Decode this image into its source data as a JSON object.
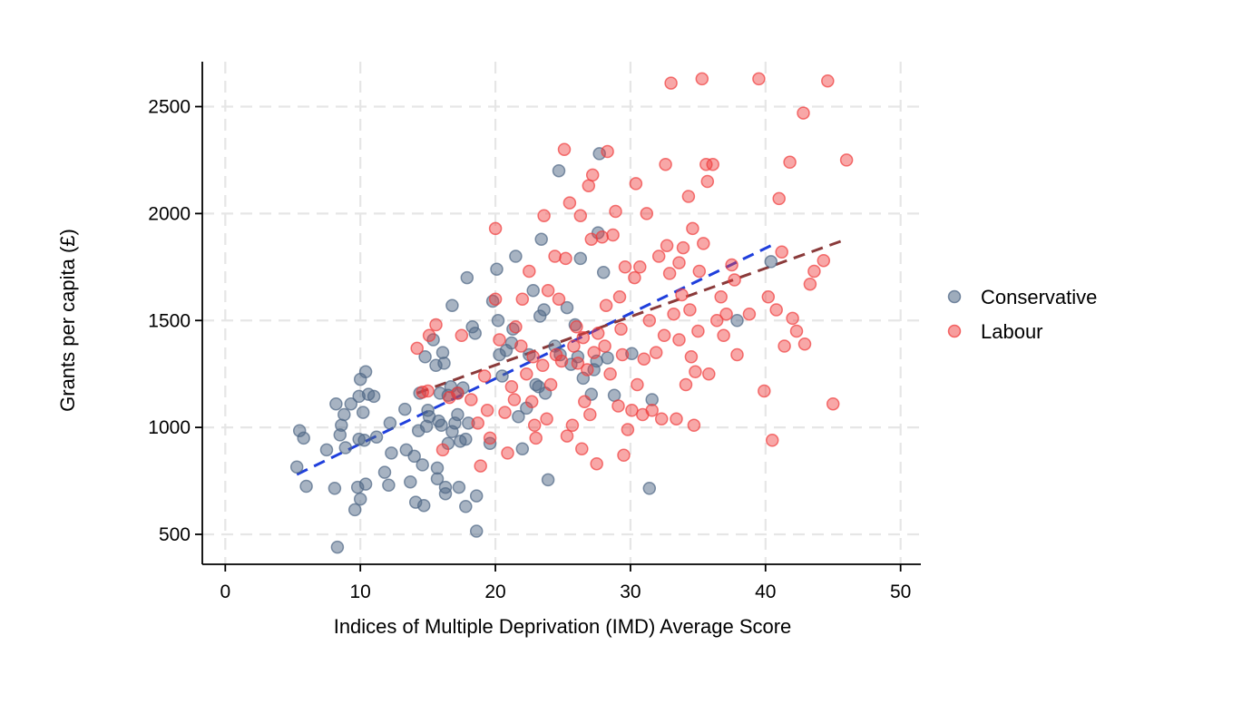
{
  "chart_data": {
    "type": "scatter",
    "title": "",
    "xlabel": "Indices of Multiple Deprivation (IMD) Average Score",
    "ylabel": "Grants per capita (£)",
    "xlim": [
      -1.7,
      51.5
    ],
    "ylim": [
      360,
      2710
    ],
    "x_ticks": [
      0,
      10,
      20,
      30,
      40,
      50
    ],
    "y_ticks": [
      500,
      1000,
      1500,
      2000,
      2500
    ],
    "grid": true,
    "legend_position": "right",
    "series": [
      {
        "name": "Conservative",
        "color": "#4f6785",
        "points": [
          [
            5.5,
            985
          ],
          [
            5.3,
            815
          ],
          [
            5.8,
            950
          ],
          [
            6.0,
            725
          ],
          [
            7.5,
            895
          ],
          [
            8.3,
            440
          ],
          [
            8.1,
            715
          ],
          [
            8.2,
            1110
          ],
          [
            8.6,
            1010
          ],
          [
            8.8,
            1060
          ],
          [
            8.5,
            965
          ],
          [
            8.9,
            905
          ],
          [
            9.3,
            1110
          ],
          [
            9.6,
            615
          ],
          [
            9.8,
            720
          ],
          [
            9.9,
            1145
          ],
          [
            10.0,
            1225
          ],
          [
            9.9,
            945
          ],
          [
            10.0,
            665
          ],
          [
            10.2,
            1070
          ],
          [
            10.3,
            940
          ],
          [
            10.4,
            1260
          ],
          [
            10.4,
            735
          ],
          [
            10.6,
            1155
          ],
          [
            11.0,
            1145
          ],
          [
            11.2,
            955
          ],
          [
            11.8,
            790
          ],
          [
            12.2,
            1020
          ],
          [
            12.3,
            880
          ],
          [
            12.1,
            730
          ],
          [
            13.3,
            1085
          ],
          [
            13.4,
            895
          ],
          [
            13.7,
            745
          ],
          [
            14.0,
            865
          ],
          [
            14.1,
            650
          ],
          [
            14.4,
            1160
          ],
          [
            14.3,
            985
          ],
          [
            14.6,
            825
          ],
          [
            14.7,
            635
          ],
          [
            14.9,
            1005
          ],
          [
            14.8,
            1330
          ],
          [
            15.0,
            1080
          ],
          [
            15.1,
            1050
          ],
          [
            15.4,
            1410
          ],
          [
            15.6,
            1290
          ],
          [
            15.7,
            810
          ],
          [
            15.8,
            1030
          ],
          [
            15.7,
            760
          ],
          [
            15.9,
            1160
          ],
          [
            16.0,
            1010
          ],
          [
            16.1,
            1350
          ],
          [
            16.2,
            1300
          ],
          [
            16.3,
            720
          ],
          [
            16.3,
            690
          ],
          [
            16.5,
            1150
          ],
          [
            16.5,
            925
          ],
          [
            16.7,
            1190
          ],
          [
            16.8,
            1570
          ],
          [
            16.8,
            980
          ],
          [
            17.0,
            1020
          ],
          [
            17.2,
            1060
          ],
          [
            17.2,
            1160
          ],
          [
            17.3,
            720
          ],
          [
            17.4,
            935
          ],
          [
            17.6,
            1185
          ],
          [
            17.8,
            945
          ],
          [
            17.9,
            1700
          ],
          [
            17.8,
            630
          ],
          [
            18.0,
            1020
          ],
          [
            18.3,
            1470
          ],
          [
            18.5,
            1440
          ],
          [
            18.6,
            515
          ],
          [
            18.6,
            680
          ],
          [
            19.6,
            925
          ],
          [
            19.8,
            1590
          ],
          [
            20.1,
            1740
          ],
          [
            20.2,
            1500
          ],
          [
            20.3,
            1340
          ],
          [
            20.5,
            1240
          ],
          [
            20.8,
            1360
          ],
          [
            21.2,
            1395
          ],
          [
            21.3,
            1460
          ],
          [
            21.5,
            1800
          ],
          [
            21.7,
            1050
          ],
          [
            22.0,
            900
          ],
          [
            22.3,
            1090
          ],
          [
            22.5,
            1340
          ],
          [
            22.8,
            1640
          ],
          [
            23.0,
            1200
          ],
          [
            23.2,
            1190
          ],
          [
            23.3,
            1520
          ],
          [
            23.4,
            1880
          ],
          [
            23.6,
            1550
          ],
          [
            23.7,
            1160
          ],
          [
            23.9,
            755
          ],
          [
            24.4,
            1380
          ],
          [
            24.7,
            2200
          ],
          [
            24.8,
            1340
          ],
          [
            25.3,
            1560
          ],
          [
            25.6,
            1295
          ],
          [
            25.9,
            1480
          ],
          [
            26.1,
            1330
          ],
          [
            26.3,
            1790
          ],
          [
            26.5,
            1230
          ],
          [
            27.1,
            1155
          ],
          [
            27.3,
            1270
          ],
          [
            27.5,
            1310
          ],
          [
            27.6,
            1910
          ],
          [
            27.7,
            2280
          ],
          [
            28.0,
            1725
          ],
          [
            28.3,
            1325
          ],
          [
            28.8,
            1150
          ],
          [
            30.1,
            1345
          ],
          [
            31.4,
            715
          ],
          [
            31.6,
            1130
          ],
          [
            37.9,
            1500
          ],
          [
            40.4,
            1775
          ]
        ]
      },
      {
        "name": "Labour",
        "color": "#f03c3c",
        "points": [
          [
            14.2,
            1370
          ],
          [
            14.6,
            1165
          ],
          [
            15.0,
            1170
          ],
          [
            15.1,
            1430
          ],
          [
            15.6,
            1480
          ],
          [
            16.1,
            895
          ],
          [
            16.6,
            1140
          ],
          [
            17.2,
            1160
          ],
          [
            17.5,
            1430
          ],
          [
            18.2,
            1130
          ],
          [
            18.7,
            1020
          ],
          [
            18.9,
            820
          ],
          [
            19.2,
            1240
          ],
          [
            19.4,
            1080
          ],
          [
            19.6,
            950
          ],
          [
            20.0,
            1930
          ],
          [
            20.0,
            1600
          ],
          [
            20.3,
            1410
          ],
          [
            20.7,
            1070
          ],
          [
            20.9,
            880
          ],
          [
            21.2,
            1190
          ],
          [
            21.4,
            1130
          ],
          [
            21.5,
            1470
          ],
          [
            21.9,
            1380
          ],
          [
            22.0,
            1600
          ],
          [
            22.3,
            1250
          ],
          [
            22.5,
            1730
          ],
          [
            22.7,
            1120
          ],
          [
            22.8,
            1330
          ],
          [
            23.0,
            950
          ],
          [
            23.5,
            1290
          ],
          [
            23.6,
            1990
          ],
          [
            23.8,
            1040
          ],
          [
            23.9,
            1640
          ],
          [
            24.1,
            1200
          ],
          [
            24.4,
            1800
          ],
          [
            24.7,
            1600
          ],
          [
            24.9,
            1310
          ],
          [
            25.1,
            2300
          ],
          [
            25.2,
            1790
          ],
          [
            25.3,
            960
          ],
          [
            25.5,
            2050
          ],
          [
            25.7,
            1010
          ],
          [
            25.8,
            1380
          ],
          [
            26.0,
            1470
          ],
          [
            26.1,
            1300
          ],
          [
            26.3,
            1990
          ],
          [
            26.4,
            900
          ],
          [
            26.6,
            1120
          ],
          [
            26.8,
            1270
          ],
          [
            26.9,
            2130
          ],
          [
            27.0,
            1060
          ],
          [
            27.1,
            1880
          ],
          [
            27.2,
            2180
          ],
          [
            27.3,
            1350
          ],
          [
            27.5,
            830
          ],
          [
            27.6,
            1440
          ],
          [
            27.9,
            1890
          ],
          [
            28.1,
            1380
          ],
          [
            28.2,
            1570
          ],
          [
            28.3,
            2290
          ],
          [
            28.5,
            1250
          ],
          [
            28.7,
            1900
          ],
          [
            28.9,
            2010
          ],
          [
            29.1,
            1100
          ],
          [
            29.3,
            1460
          ],
          [
            29.4,
            1340
          ],
          [
            29.5,
            870
          ],
          [
            29.6,
            1750
          ],
          [
            29.8,
            990
          ],
          [
            30.1,
            1080
          ],
          [
            30.3,
            1700
          ],
          [
            30.4,
            2140
          ],
          [
            30.5,
            1200
          ],
          [
            30.7,
            1750
          ],
          [
            30.9,
            1060
          ],
          [
            31.2,
            2000
          ],
          [
            31.4,
            1500
          ],
          [
            31.6,
            1080
          ],
          [
            31.9,
            1350
          ],
          [
            32.1,
            1800
          ],
          [
            32.3,
            1040
          ],
          [
            32.5,
            1430
          ],
          [
            32.6,
            2230
          ],
          [
            32.7,
            1850
          ],
          [
            32.9,
            1720
          ],
          [
            33.0,
            2610
          ],
          [
            33.2,
            1530
          ],
          [
            33.4,
            1040
          ],
          [
            33.6,
            1770
          ],
          [
            33.8,
            1620
          ],
          [
            33.9,
            1840
          ],
          [
            34.1,
            1200
          ],
          [
            34.3,
            2080
          ],
          [
            34.4,
            1550
          ],
          [
            34.5,
            1330
          ],
          [
            34.6,
            1930
          ],
          [
            34.7,
            1010
          ],
          [
            34.8,
            1260
          ],
          [
            35.1,
            1730
          ],
          [
            35.3,
            2630
          ],
          [
            35.4,
            1860
          ],
          [
            35.6,
            2230
          ],
          [
            35.7,
            2150
          ],
          [
            35.8,
            1250
          ],
          [
            36.1,
            2230
          ],
          [
            36.4,
            1500
          ],
          [
            36.7,
            1610
          ],
          [
            36.9,
            1430
          ],
          [
            37.1,
            1530
          ],
          [
            37.5,
            1760
          ],
          [
            37.7,
            1690
          ],
          [
            37.9,
            1340
          ],
          [
            38.8,
            1530
          ],
          [
            39.5,
            2630
          ],
          [
            39.9,
            1170
          ],
          [
            40.2,
            1610
          ],
          [
            40.5,
            940
          ],
          [
            40.8,
            1550
          ],
          [
            41.0,
            2070
          ],
          [
            41.2,
            1820
          ],
          [
            41.4,
            1380
          ],
          [
            41.8,
            2240
          ],
          [
            42.0,
            1510
          ],
          [
            42.3,
            1450
          ],
          [
            42.8,
            2470
          ],
          [
            42.9,
            1390
          ],
          [
            43.3,
            1670
          ],
          [
            43.6,
            1730
          ],
          [
            44.3,
            1780
          ],
          [
            44.6,
            2620
          ],
          [
            45.0,
            1110
          ],
          [
            46.0,
            2250
          ],
          [
            26.5,
            1420
          ],
          [
            29.2,
            1610
          ],
          [
            31.0,
            1320
          ],
          [
            33.6,
            1410
          ],
          [
            35.0,
            1450
          ],
          [
            22.9,
            1010
          ],
          [
            24.5,
            1340
          ]
        ]
      }
    ],
    "fit_lines": [
      {
        "name": "Conservative",
        "color": "#1f3fdc",
        "x": [
          5.3,
          40.4
        ],
        "y": [
          780,
          1850
        ]
      },
      {
        "name": "Labour",
        "color": "#8a3a3a",
        "x": [
          14.2,
          46.0
        ],
        "y": [
          1160,
          1880
        ]
      }
    ]
  }
}
